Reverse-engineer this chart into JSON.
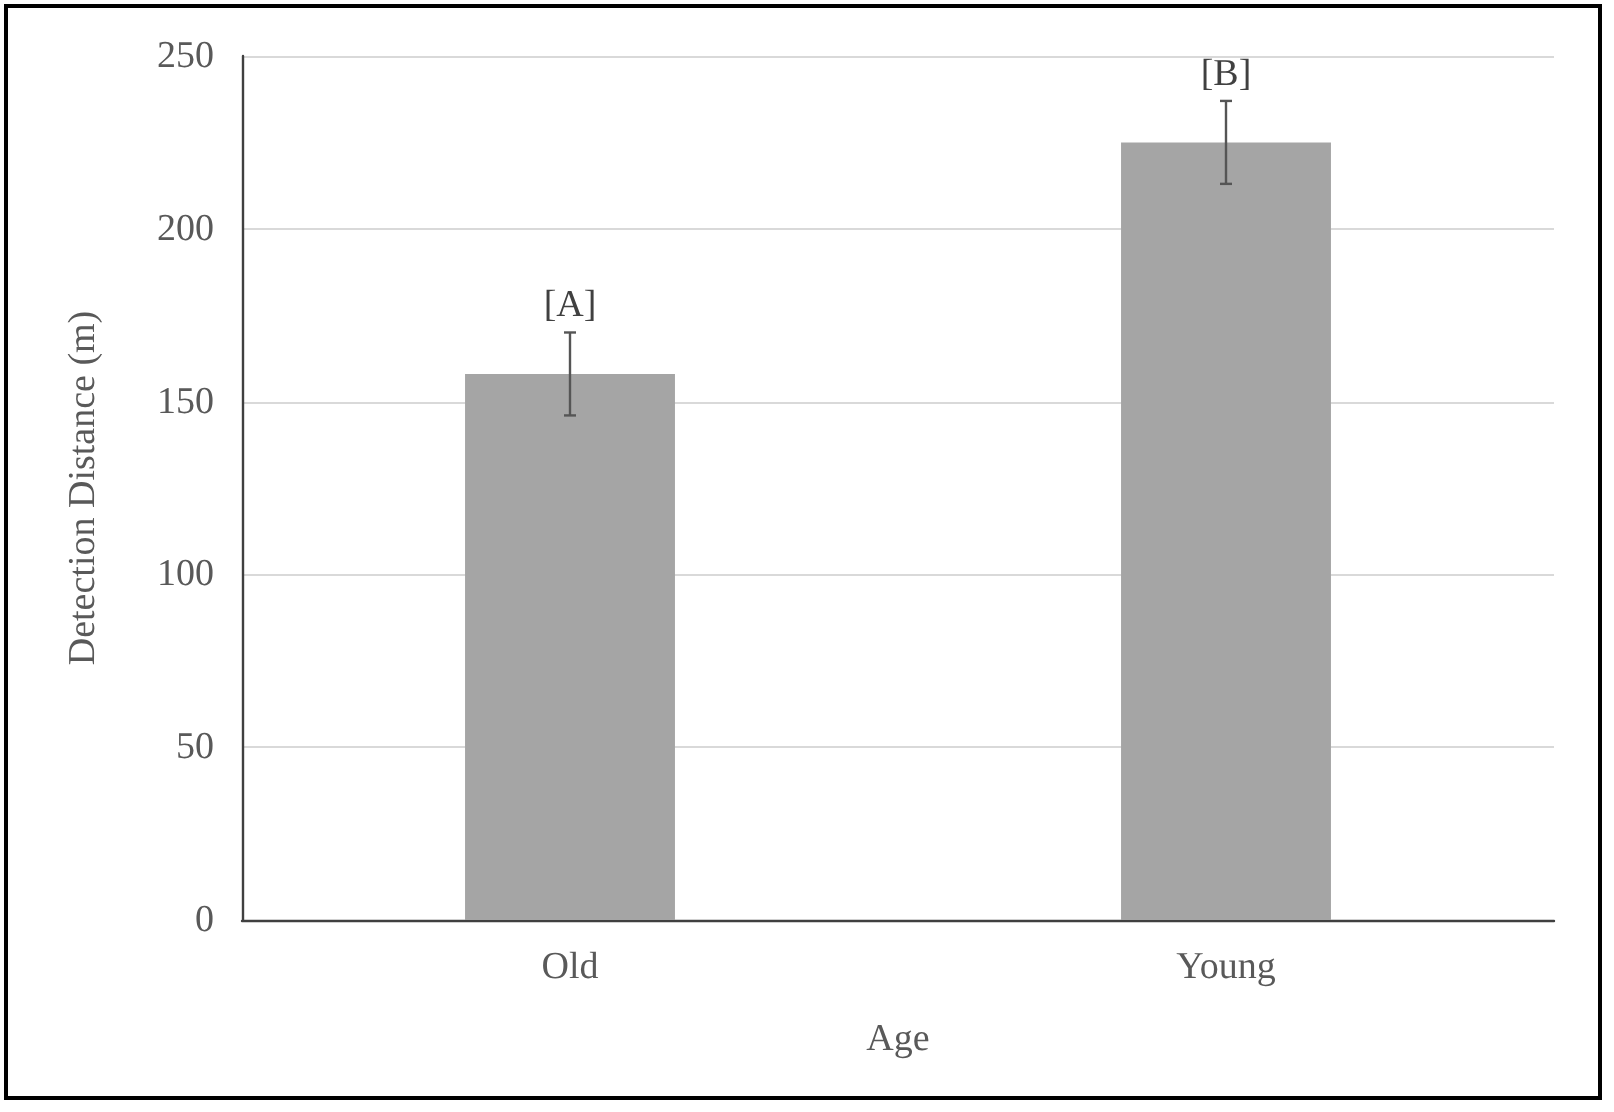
{
  "chart_data": {
    "type": "bar",
    "xlabel": "Age",
    "ylabel": "Detection Distance (m)",
    "categories": [
      "Old",
      "Young"
    ],
    "values": [
      158,
      225
    ],
    "color": "#a5a5a5",
    "errors": [
      12,
      12
    ],
    "ylim": [
      0,
      250
    ],
    "yticks": [
      0,
      50,
      100,
      150,
      200,
      250
    ],
    "grid": "y",
    "annotations": [
      {
        "text": "[A]",
        "x": "Old",
        "y": 170
      },
      {
        "text": "[B]",
        "x": "Young",
        "y": 237
      }
    ]
  }
}
